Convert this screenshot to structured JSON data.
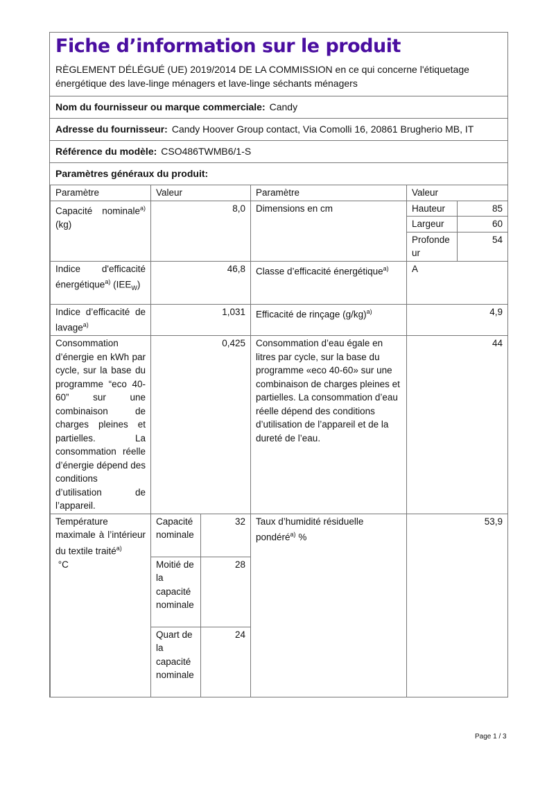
{
  "title": "Fiche d’information sur le produit",
  "regulation": "RÈGLEMENT DÉLÉGUÉ (UE) 2019/2014 DE LA COMMISSION en ce qui concerne l'étiquetage énergétique des lave-linge ménagers et lave-linge séchants ménagers",
  "supplier": {
    "label": "Nom du fournisseur ou marque commerciale:",
    "value": "Candy"
  },
  "address": {
    "label": "Adresse du fournisseur:",
    "value": "Candy Hoover Group contact, Via Comolli 16, 20861 Brugherio MB, IT"
  },
  "model": {
    "label": "Référence du modèle:",
    "value": "CSO486TWMB6/1-S"
  },
  "section": "Paramètres généraux du produit:",
  "colors": {
    "title": "#4a0ea0",
    "border": "#777777"
  },
  "table": {
    "headers": [
      "Paramètre",
      "Valeur",
      "Paramètre",
      "Valeur"
    ],
    "capacity": {
      "label": "Capacité nominale",
      "sup": "a)",
      "unit": "(kg)",
      "value": "8,0"
    },
    "dimensions": {
      "label": "Dimensions en cm",
      "height_label": "Hauteur",
      "height": "85",
      "width_label": "Largeur",
      "width": "60",
      "depth_label": "Profondeur",
      "depth": "54"
    },
    "eei": {
      "label": "Indice d'efficacité énergétique",
      "sup": "a)",
      "sym": "(IEE",
      "sym_sub": "W",
      "sym_end": ")",
      "value": "46,8"
    },
    "energy_class": {
      "label": "Classe d’efficacité énergétique",
      "sup": "a)",
      "value": "A"
    },
    "washing": {
      "label": "Indice d’efficacité de lavage",
      "sup": "a)",
      "value": "1,031"
    },
    "rinsing": {
      "label": "Efficacité de rinçage (g/kg)",
      "sup": "a)",
      "value": "4,9"
    },
    "energy": {
      "label": "Consommation d’énergie en kWh par cycle, sur la base du programme “eco 40-60” sur une combinaison de charges pleines et partielles. La consommation réelle d’énergie dépend des conditions d’utilisation de l’appareil.",
      "value": "0,425"
    },
    "water": {
      "label": "Consommation d’eau égale en litres par cycle, sur la base du programme «eco 40-60» sur une combinaison de charges pleines et partielles. La consommation d’eau réelle dépend des conditions d’utilisation de l’appareil et de la dureté de l’eau.",
      "value": "44"
    },
    "temperature": {
      "label": "Température maximale à l’intérieur du textile traité",
      "sup": "a)",
      "unit": "°C",
      "rows": [
        {
          "label": "Capacité nominale",
          "value": "32"
        },
        {
          "label": "Moitié de la capacité nominale",
          "value": "28"
        },
        {
          "label": "Quart de la capacité nominale",
          "value": "24"
        }
      ]
    },
    "humidity": {
      "label": "Taux d’humidité résiduelle pondéré",
      "sup": "a)",
      "unit": "%",
      "value": "53,9"
    }
  },
  "footer": "Page 1 / 3"
}
